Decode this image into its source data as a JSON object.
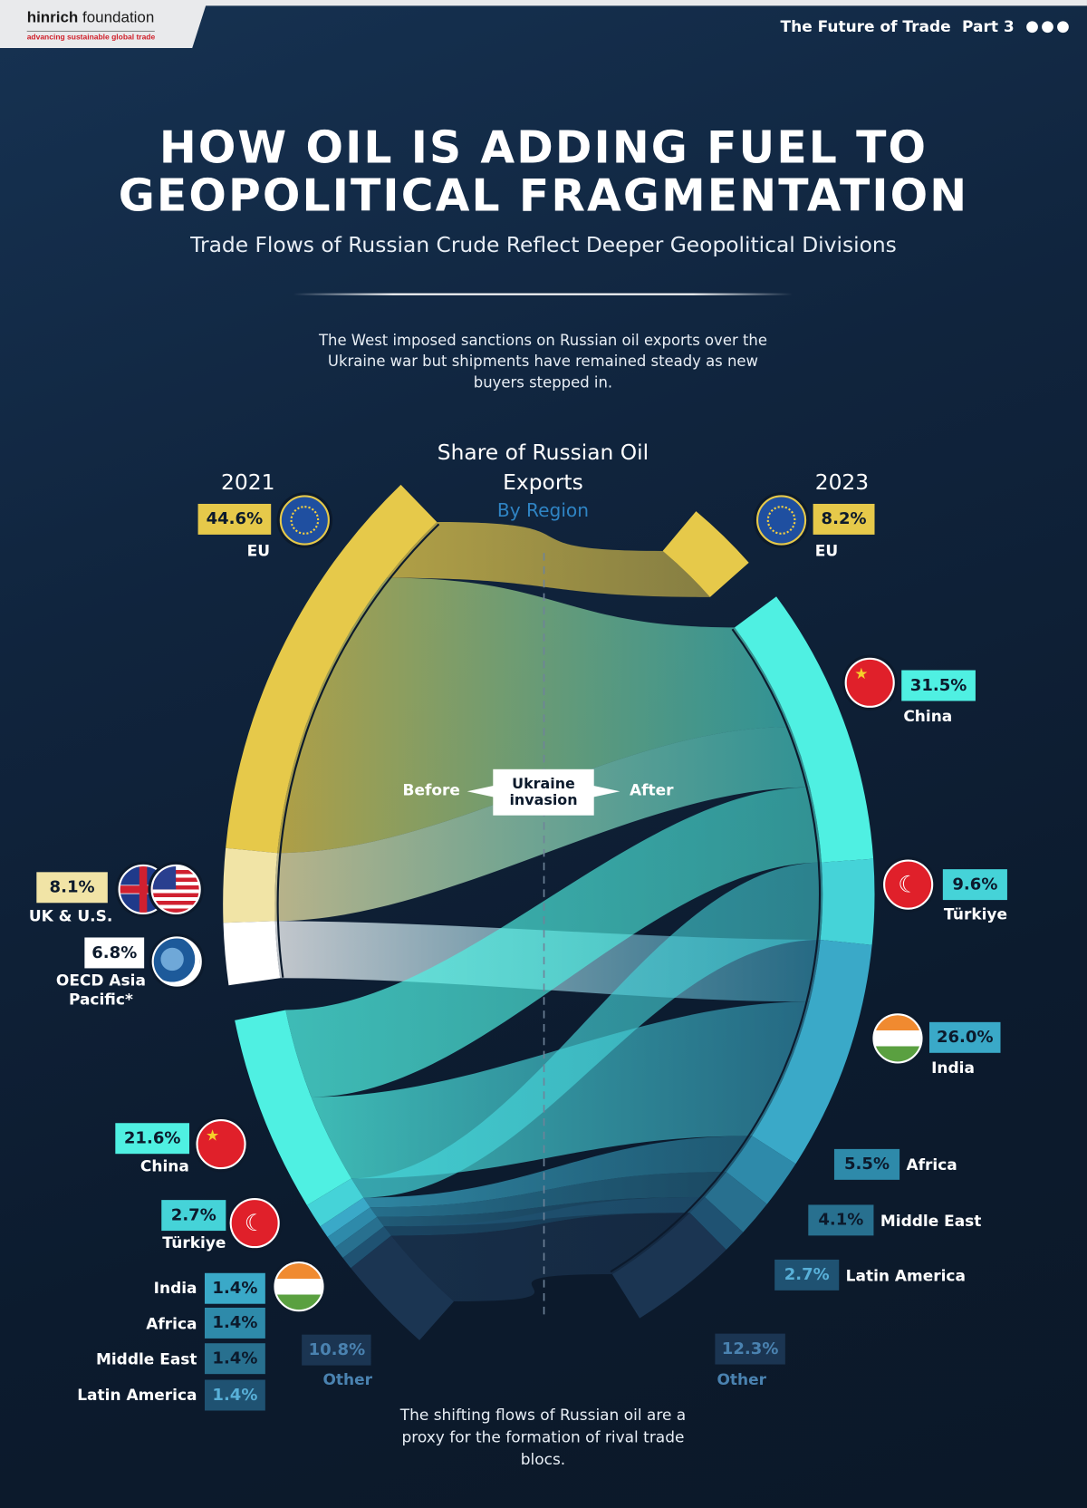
{
  "header": {
    "logo_name_bold": "hinrich",
    "logo_name": " foundation",
    "logo_tagline": "advancing sustainable global trade",
    "series": "The Future of Trade",
    "part": "Part 3"
  },
  "title_line1": "HOW OIL IS ADDING FUEL TO",
  "title_line2": "GEOPOLITICAL FRAGMENTATION",
  "subtitle": "Trade Flows of Russian Crude Reflect Deeper Geopolitical Divisions",
  "intro": "The West imposed sanctions on Russian oil exports over the Ukraine war but shipments have remained steady as new buyers stepped in.",
  "outro": "The shifting flows of Russian oil are a proxy for the formation of rival trade blocs.",
  "invasion": {
    "before": "Before",
    "label": "Ukraine invasion",
    "after": "After"
  },
  "colors": {
    "eu": "#e6c94a",
    "ukus": "#f1e4a6",
    "oecd": "#ffffff",
    "china": "#4ff0e2",
    "turkiye": "#45d3d8",
    "india": "#3aa9c8",
    "africa": "#2e8aaa",
    "middle_east": "#28708f",
    "latin_america": "#1f5272",
    "other": "#1b3552"
  },
  "chart_data": {
    "type": "sankey",
    "title": "Share of Russian Oil Exports",
    "subtitle": "By Region",
    "unit": "%",
    "left": {
      "year": "2021",
      "items": [
        {
          "name": "EU",
          "value": 44.6,
          "label": "44.6%"
        },
        {
          "name": "UK & U.S.",
          "value": 8.1,
          "label": "8.1%"
        },
        {
          "name": "OECD Asia Pacific*",
          "value": 6.8,
          "label": "6.8%"
        },
        {
          "name": "China",
          "value": 21.6,
          "label": "21.6%"
        },
        {
          "name": "Türkiye",
          "value": 2.7,
          "label": "2.7%"
        },
        {
          "name": "India",
          "value": 1.4,
          "label": "1.4%"
        },
        {
          "name": "Africa",
          "value": 1.4,
          "label": "1.4%"
        },
        {
          "name": "Middle East",
          "value": 1.4,
          "label": "1.4%"
        },
        {
          "name": "Latin America",
          "value": 1.4,
          "label": "1.4%"
        },
        {
          "name": "Other",
          "value": 10.8,
          "label": "10.8%"
        }
      ]
    },
    "right": {
      "year": "2023",
      "items": [
        {
          "name": "EU",
          "value": 8.2,
          "label": "8.2%"
        },
        {
          "name": "China",
          "value": 31.5,
          "label": "31.5%"
        },
        {
          "name": "Türkiye",
          "value": 9.6,
          "label": "9.6%"
        },
        {
          "name": "India",
          "value": 26.0,
          "label": "26.0%"
        },
        {
          "name": "Africa",
          "value": 5.5,
          "label": "5.5%"
        },
        {
          "name": "Middle East",
          "value": 4.1,
          "label": "4.1%"
        },
        {
          "name": "Latin America",
          "value": 2.7,
          "label": "2.7%"
        },
        {
          "name": "Other",
          "value": 12.3,
          "label": "12.3%"
        }
      ]
    }
  }
}
